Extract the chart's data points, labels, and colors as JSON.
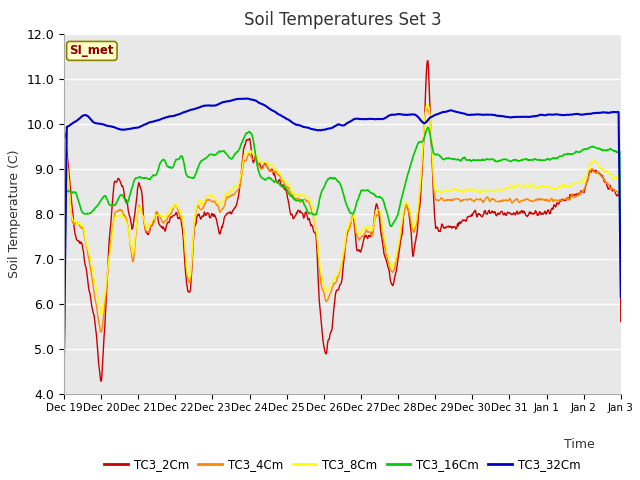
{
  "title": "Soil Temperatures Set 3",
  "xlabel": "Time",
  "ylabel": "Soil Temperature (C)",
  "ylim": [
    4.0,
    12.0
  ],
  "yticks": [
    4.0,
    5.0,
    6.0,
    7.0,
    8.0,
    9.0,
    10.0,
    11.0,
    12.0
  ],
  "plot_bg": "#e8e8e8",
  "series_colors": {
    "TC3_2Cm": "#cc0000",
    "TC3_4Cm": "#ff8800",
    "TC3_8Cm": "#ffff00",
    "TC3_16Cm": "#00cc00",
    "TC3_32Cm": "#0000cc"
  },
  "legend_label": "SI_met",
  "x_tick_labels": [
    "Dec 19",
    "Dec 20",
    "Dec 21",
    "Dec 22",
    "Dec 23",
    "Dec 24",
    "Dec 25",
    "Dec 26",
    "Dec 27",
    "Dec 28",
    "Dec 29",
    "Dec 30",
    "Dec 31",
    "Jan 1",
    "Jan 2",
    "Jan 3"
  ],
  "num_points": 1000,
  "tc3_2_waypoints": [
    [
      0.0,
      9.9
    ],
    [
      0.15,
      8.8
    ],
    [
      0.3,
      7.5
    ],
    [
      0.5,
      7.3
    ],
    [
      0.7,
      6.2
    ],
    [
      0.85,
      5.5
    ],
    [
      1.0,
      4.1
    ],
    [
      1.1,
      5.5
    ],
    [
      1.2,
      7.2
    ],
    [
      1.35,
      8.7
    ],
    [
      1.5,
      8.8
    ],
    [
      1.6,
      8.5
    ],
    [
      1.7,
      8.2
    ],
    [
      1.85,
      7.6
    ],
    [
      2.0,
      8.7
    ],
    [
      2.1,
      8.5
    ],
    [
      2.15,
      7.8
    ],
    [
      2.25,
      7.5
    ],
    [
      2.4,
      7.8
    ],
    [
      2.5,
      8.0
    ],
    [
      2.6,
      7.7
    ],
    [
      2.7,
      7.6
    ],
    [
      2.85,
      7.9
    ],
    [
      3.0,
      8.0
    ],
    [
      3.1,
      7.9
    ],
    [
      3.2,
      7.6
    ],
    [
      3.3,
      6.4
    ],
    [
      3.4,
      6.2
    ],
    [
      3.5,
      7.6
    ],
    [
      3.6,
      8.0
    ],
    [
      3.7,
      7.9
    ],
    [
      3.85,
      8.0
    ],
    [
      4.0,
      8.0
    ],
    [
      4.1,
      7.9
    ],
    [
      4.2,
      7.5
    ],
    [
      4.35,
      8.0
    ],
    [
      4.5,
      8.0
    ],
    [
      4.6,
      8.1
    ],
    [
      4.7,
      8.3
    ],
    [
      4.85,
      9.5
    ],
    [
      5.0,
      9.7
    ],
    [
      5.1,
      9.1
    ],
    [
      5.15,
      9.3
    ],
    [
      5.2,
      9.2
    ],
    [
      5.3,
      9.0
    ],
    [
      5.4,
      9.1
    ],
    [
      5.5,
      9.0
    ],
    [
      5.7,
      8.8
    ],
    [
      5.9,
      8.6
    ],
    [
      6.0,
      8.5
    ],
    [
      6.1,
      8.0
    ],
    [
      6.2,
      7.9
    ],
    [
      6.3,
      8.0
    ],
    [
      6.4,
      8.0
    ],
    [
      6.5,
      8.0
    ],
    [
      6.6,
      7.9
    ],
    [
      6.7,
      7.7
    ],
    [
      6.8,
      7.5
    ],
    [
      6.85,
      6.5
    ],
    [
      6.9,
      5.8
    ],
    [
      7.0,
      5.0
    ],
    [
      7.05,
      4.9
    ],
    [
      7.1,
      5.1
    ],
    [
      7.15,
      5.2
    ],
    [
      7.2,
      5.3
    ],
    [
      7.3,
      6.2
    ],
    [
      7.4,
      6.3
    ],
    [
      7.5,
      6.6
    ],
    [
      7.6,
      7.5
    ],
    [
      7.8,
      8.0
    ],
    [
      7.85,
      7.5
    ],
    [
      7.9,
      7.2
    ],
    [
      8.0,
      7.2
    ],
    [
      8.1,
      7.5
    ],
    [
      8.2,
      7.5
    ],
    [
      8.3,
      7.5
    ],
    [
      8.4,
      8.2
    ],
    [
      8.5,
      8.0
    ],
    [
      8.55,
      7.5
    ],
    [
      8.6,
      7.2
    ],
    [
      8.7,
      6.9
    ],
    [
      8.8,
      6.5
    ],
    [
      8.85,
      6.4
    ],
    [
      8.9,
      6.5
    ],
    [
      9.0,
      7.0
    ],
    [
      9.1,
      7.5
    ],
    [
      9.15,
      8.0
    ],
    [
      9.2,
      8.2
    ],
    [
      9.3,
      8.0
    ],
    [
      9.35,
      7.5
    ],
    [
      9.4,
      7.0
    ],
    [
      9.45,
      7.3
    ],
    [
      9.5,
      7.5
    ],
    [
      9.55,
      8.0
    ],
    [
      9.6,
      8.3
    ],
    [
      9.7,
      9.8
    ],
    [
      9.75,
      10.9
    ],
    [
      9.8,
      11.6
    ],
    [
      9.85,
      10.5
    ],
    [
      9.9,
      9.5
    ],
    [
      9.95,
      8.5
    ],
    [
      10.0,
      7.7
    ],
    [
      10.05,
      7.7
    ],
    [
      10.1,
      7.65
    ],
    [
      10.2,
      7.7
    ],
    [
      10.3,
      7.7
    ],
    [
      10.5,
      7.7
    ],
    [
      10.7,
      7.8
    ],
    [
      11.0,
      8.0
    ],
    [
      11.5,
      8.0
    ],
    [
      12.0,
      8.0
    ],
    [
      12.5,
      8.0
    ],
    [
      13.0,
      8.0
    ],
    [
      13.5,
      8.3
    ],
    [
      14.0,
      8.5
    ],
    [
      14.2,
      9.0
    ],
    [
      14.5,
      8.8
    ],
    [
      14.8,
      8.5
    ],
    [
      15.0,
      8.4
    ]
  ],
  "tc3_4_waypoints": [
    [
      0.0,
      9.9
    ],
    [
      0.2,
      7.8
    ],
    [
      0.5,
      7.7
    ],
    [
      0.7,
      6.8
    ],
    [
      0.85,
      6.0
    ],
    [
      1.0,
      5.3
    ],
    [
      1.1,
      6.0
    ],
    [
      1.2,
      7.0
    ],
    [
      1.35,
      8.0
    ],
    [
      1.5,
      8.1
    ],
    [
      1.6,
      8.0
    ],
    [
      1.7,
      7.8
    ],
    [
      1.85,
      6.8
    ],
    [
      2.0,
      8.2
    ],
    [
      2.1,
      8.0
    ],
    [
      2.2,
      7.6
    ],
    [
      2.35,
      7.7
    ],
    [
      2.5,
      8.0
    ],
    [
      2.7,
      7.8
    ],
    [
      2.85,
      8.0
    ],
    [
      3.0,
      8.2
    ],
    [
      3.1,
      8.0
    ],
    [
      3.2,
      7.8
    ],
    [
      3.3,
      6.6
    ],
    [
      3.4,
      6.4
    ],
    [
      3.5,
      7.8
    ],
    [
      3.6,
      8.2
    ],
    [
      3.7,
      8.1
    ],
    [
      3.85,
      8.3
    ],
    [
      4.0,
      8.3
    ],
    [
      4.1,
      8.2
    ],
    [
      4.2,
      8.0
    ],
    [
      4.35,
      8.3
    ],
    [
      4.5,
      8.4
    ],
    [
      4.7,
      8.5
    ],
    [
      4.85,
      9.2
    ],
    [
      5.0,
      9.3
    ],
    [
      5.1,
      9.2
    ],
    [
      5.2,
      9.2
    ],
    [
      5.3,
      9.0
    ],
    [
      5.4,
      9.1
    ],
    [
      5.5,
      9.0
    ],
    [
      5.7,
      8.9
    ],
    [
      5.9,
      8.7
    ],
    [
      6.0,
      8.6
    ],
    [
      6.2,
      8.3
    ],
    [
      6.4,
      8.3
    ],
    [
      6.5,
      8.3
    ],
    [
      6.6,
      8.2
    ],
    [
      6.7,
      8.0
    ],
    [
      6.8,
      7.5
    ],
    [
      6.85,
      7.0
    ],
    [
      6.9,
      6.5
    ],
    [
      7.0,
      6.2
    ],
    [
      7.05,
      6.0
    ],
    [
      7.1,
      6.1
    ],
    [
      7.2,
      6.3
    ],
    [
      7.3,
      6.5
    ],
    [
      7.4,
      6.6
    ],
    [
      7.5,
      6.9
    ],
    [
      7.6,
      7.5
    ],
    [
      7.8,
      8.0
    ],
    [
      7.85,
      7.6
    ],
    [
      7.9,
      7.4
    ],
    [
      8.0,
      7.5
    ],
    [
      8.1,
      7.6
    ],
    [
      8.2,
      7.6
    ],
    [
      8.3,
      7.5
    ],
    [
      8.4,
      8.0
    ],
    [
      8.5,
      8.0
    ],
    [
      8.55,
      7.8
    ],
    [
      8.6,
      7.4
    ],
    [
      8.7,
      7.0
    ],
    [
      8.8,
      6.7
    ],
    [
      8.9,
      6.8
    ],
    [
      9.0,
      7.2
    ],
    [
      9.1,
      7.8
    ],
    [
      9.15,
      8.0
    ],
    [
      9.2,
      8.2
    ],
    [
      9.3,
      8.0
    ],
    [
      9.35,
      7.8
    ],
    [
      9.4,
      7.5
    ],
    [
      9.5,
      7.8
    ],
    [
      9.55,
      8.2
    ],
    [
      9.6,
      8.6
    ],
    [
      9.7,
      10.0
    ],
    [
      9.75,
      10.3
    ],
    [
      9.8,
      10.3
    ],
    [
      9.85,
      10.2
    ],
    [
      9.9,
      9.5
    ],
    [
      9.95,
      8.5
    ],
    [
      10.0,
      8.3
    ],
    [
      10.05,
      8.3
    ],
    [
      10.2,
      8.3
    ],
    [
      10.5,
      8.3
    ],
    [
      11.0,
      8.3
    ],
    [
      11.5,
      8.3
    ],
    [
      12.0,
      8.3
    ],
    [
      13.0,
      8.3
    ],
    [
      13.5,
      8.3
    ],
    [
      14.0,
      8.5
    ],
    [
      14.2,
      9.0
    ],
    [
      14.5,
      8.8
    ],
    [
      14.8,
      8.5
    ],
    [
      15.0,
      8.4
    ]
  ],
  "tc3_8_waypoints": [
    [
      0.0,
      9.9
    ],
    [
      0.2,
      7.9
    ],
    [
      0.5,
      7.7
    ],
    [
      0.7,
      7.0
    ],
    [
      0.85,
      6.4
    ],
    [
      1.0,
      5.7
    ],
    [
      1.1,
      6.2
    ],
    [
      1.2,
      7.0
    ],
    [
      1.35,
      7.9
    ],
    [
      1.5,
      8.0
    ],
    [
      1.6,
      7.9
    ],
    [
      1.7,
      7.8
    ],
    [
      1.85,
      7.0
    ],
    [
      2.0,
      8.2
    ],
    [
      2.1,
      8.0
    ],
    [
      2.2,
      7.7
    ],
    [
      2.35,
      7.8
    ],
    [
      2.5,
      8.0
    ],
    [
      2.7,
      7.9
    ],
    [
      2.85,
      8.1
    ],
    [
      3.0,
      8.2
    ],
    [
      3.1,
      8.1
    ],
    [
      3.2,
      7.9
    ],
    [
      3.3,
      6.7
    ],
    [
      3.4,
      6.5
    ],
    [
      3.5,
      7.9
    ],
    [
      3.6,
      8.3
    ],
    [
      3.7,
      8.2
    ],
    [
      3.85,
      8.4
    ],
    [
      4.0,
      8.4
    ],
    [
      4.1,
      8.3
    ],
    [
      4.2,
      8.2
    ],
    [
      4.35,
      8.4
    ],
    [
      4.5,
      8.5
    ],
    [
      4.7,
      8.6
    ],
    [
      4.85,
      9.3
    ],
    [
      5.0,
      9.4
    ],
    [
      5.1,
      9.3
    ],
    [
      5.2,
      9.3
    ],
    [
      5.3,
      9.1
    ],
    [
      5.4,
      9.2
    ],
    [
      5.5,
      9.1
    ],
    [
      5.7,
      9.0
    ],
    [
      5.9,
      8.8
    ],
    [
      6.0,
      8.7
    ],
    [
      6.2,
      8.4
    ],
    [
      6.4,
      8.4
    ],
    [
      6.5,
      8.4
    ],
    [
      6.6,
      8.3
    ],
    [
      6.7,
      8.1
    ],
    [
      6.8,
      7.6
    ],
    [
      6.85,
      7.1
    ],
    [
      6.9,
      6.7
    ],
    [
      7.0,
      6.4
    ],
    [
      7.05,
      6.2
    ],
    [
      7.1,
      6.3
    ],
    [
      7.2,
      6.4
    ],
    [
      7.3,
      6.6
    ],
    [
      7.4,
      6.7
    ],
    [
      7.5,
      7.0
    ],
    [
      7.6,
      7.6
    ],
    [
      7.8,
      8.0
    ],
    [
      7.85,
      7.7
    ],
    [
      7.9,
      7.5
    ],
    [
      8.0,
      7.6
    ],
    [
      8.1,
      7.7
    ],
    [
      8.2,
      7.7
    ],
    [
      8.3,
      7.6
    ],
    [
      8.4,
      8.1
    ],
    [
      8.5,
      8.1
    ],
    [
      8.55,
      7.9
    ],
    [
      8.6,
      7.5
    ],
    [
      8.7,
      7.1
    ],
    [
      8.8,
      6.8
    ],
    [
      8.9,
      6.9
    ],
    [
      9.0,
      7.3
    ],
    [
      9.1,
      7.9
    ],
    [
      9.15,
      8.1
    ],
    [
      9.2,
      8.3
    ],
    [
      9.3,
      8.1
    ],
    [
      9.35,
      7.9
    ],
    [
      9.4,
      7.6
    ],
    [
      9.5,
      7.9
    ],
    [
      9.55,
      8.3
    ],
    [
      9.6,
      8.7
    ],
    [
      9.7,
      10.1
    ],
    [
      9.75,
      10.4
    ],
    [
      9.8,
      10.4
    ],
    [
      9.85,
      10.3
    ],
    [
      9.9,
      9.6
    ],
    [
      9.95,
      8.7
    ],
    [
      10.0,
      8.5
    ],
    [
      10.05,
      8.5
    ],
    [
      10.2,
      8.5
    ],
    [
      10.5,
      8.5
    ],
    [
      11.0,
      8.5
    ],
    [
      11.5,
      8.5
    ],
    [
      12.0,
      8.6
    ],
    [
      13.0,
      8.6
    ],
    [
      13.5,
      8.6
    ],
    [
      14.0,
      8.7
    ],
    [
      14.2,
      9.2
    ],
    [
      14.5,
      9.0
    ],
    [
      14.8,
      8.8
    ],
    [
      15.0,
      8.7
    ]
  ],
  "tc3_16_waypoints": [
    [
      0.0,
      8.5
    ],
    [
      0.3,
      8.5
    ],
    [
      0.5,
      8.0
    ],
    [
      0.7,
      8.0
    ],
    [
      0.9,
      8.2
    ],
    [
      1.0,
      8.3
    ],
    [
      1.1,
      8.4
    ],
    [
      1.2,
      8.2
    ],
    [
      1.4,
      8.2
    ],
    [
      1.5,
      8.4
    ],
    [
      1.6,
      8.4
    ],
    [
      1.7,
      8.2
    ],
    [
      1.9,
      8.8
    ],
    [
      2.0,
      8.8
    ],
    [
      2.1,
      8.8
    ],
    [
      2.2,
      8.8
    ],
    [
      2.3,
      8.8
    ],
    [
      2.5,
      8.9
    ],
    [
      2.6,
      9.2
    ],
    [
      2.7,
      9.2
    ],
    [
      2.8,
      9.0
    ],
    [
      2.9,
      9.0
    ],
    [
      3.0,
      9.2
    ],
    [
      3.1,
      9.2
    ],
    [
      3.15,
      9.3
    ],
    [
      3.2,
      9.2
    ],
    [
      3.3,
      8.8
    ],
    [
      3.4,
      8.8
    ],
    [
      3.5,
      8.8
    ],
    [
      3.6,
      9.0
    ],
    [
      3.7,
      9.2
    ],
    [
      3.8,
      9.2
    ],
    [
      3.9,
      9.3
    ],
    [
      4.0,
      9.3
    ],
    [
      4.1,
      9.3
    ],
    [
      4.2,
      9.4
    ],
    [
      4.3,
      9.4
    ],
    [
      4.4,
      9.3
    ],
    [
      4.5,
      9.2
    ],
    [
      4.6,
      9.3
    ],
    [
      4.7,
      9.4
    ],
    [
      4.8,
      9.6
    ],
    [
      4.9,
      9.8
    ],
    [
      5.0,
      9.8
    ],
    [
      5.05,
      9.8
    ],
    [
      5.1,
      9.6
    ],
    [
      5.2,
      9.0
    ],
    [
      5.3,
      8.8
    ],
    [
      5.4,
      8.8
    ],
    [
      5.5,
      8.8
    ],
    [
      5.7,
      8.7
    ],
    [
      5.9,
      8.6
    ],
    [
      6.0,
      8.5
    ],
    [
      6.2,
      8.3
    ],
    [
      6.4,
      8.3
    ],
    [
      6.5,
      8.1
    ],
    [
      6.6,
      8.0
    ],
    [
      6.7,
      8.0
    ],
    [
      6.8,
      8.0
    ],
    [
      6.9,
      8.4
    ],
    [
      7.0,
      8.6
    ],
    [
      7.05,
      8.7
    ],
    [
      7.1,
      8.8
    ],
    [
      7.2,
      8.8
    ],
    [
      7.3,
      8.8
    ],
    [
      7.4,
      8.7
    ],
    [
      7.5,
      8.5
    ],
    [
      7.6,
      8.2
    ],
    [
      7.7,
      8.0
    ],
    [
      7.8,
      8.0
    ],
    [
      7.85,
      8.2
    ],
    [
      7.9,
      8.3
    ],
    [
      8.0,
      8.5
    ],
    [
      8.2,
      8.5
    ],
    [
      8.4,
      8.4
    ],
    [
      8.6,
      8.3
    ],
    [
      8.7,
      8.0
    ],
    [
      8.75,
      7.8
    ],
    [
      8.8,
      7.7
    ],
    [
      8.9,
      7.8
    ],
    [
      9.0,
      8.0
    ],
    [
      9.1,
      8.4
    ],
    [
      9.2,
      8.7
    ],
    [
      9.3,
      9.0
    ],
    [
      9.4,
      9.3
    ],
    [
      9.5,
      9.5
    ],
    [
      9.55,
      9.6
    ],
    [
      9.6,
      9.6
    ],
    [
      9.65,
      9.6
    ],
    [
      9.7,
      9.7
    ],
    [
      9.75,
      9.8
    ],
    [
      9.8,
      10.0
    ],
    [
      9.85,
      9.8
    ],
    [
      9.9,
      9.5
    ],
    [
      9.95,
      9.3
    ],
    [
      10.0,
      9.3
    ],
    [
      10.1,
      9.3
    ],
    [
      10.2,
      9.2
    ],
    [
      10.5,
      9.2
    ],
    [
      11.0,
      9.2
    ],
    [
      11.5,
      9.2
    ],
    [
      12.0,
      9.2
    ],
    [
      13.0,
      9.2
    ],
    [
      13.5,
      9.3
    ],
    [
      14.0,
      9.4
    ],
    [
      14.2,
      9.5
    ],
    [
      14.5,
      9.4
    ],
    [
      14.8,
      9.4
    ],
    [
      15.0,
      9.4
    ]
  ],
  "tc3_32_waypoints": [
    [
      0.0,
      9.9
    ],
    [
      0.2,
      10.0
    ],
    [
      0.4,
      10.1
    ],
    [
      0.5,
      10.2
    ],
    [
      0.6,
      10.2
    ],
    [
      0.7,
      10.1
    ],
    [
      0.8,
      10.0
    ],
    [
      1.0,
      10.0
    ],
    [
      1.2,
      9.95
    ],
    [
      1.4,
      9.9
    ],
    [
      1.6,
      9.85
    ],
    [
      1.8,
      9.9
    ],
    [
      2.0,
      9.9
    ],
    [
      2.2,
      10.0
    ],
    [
      2.4,
      10.05
    ],
    [
      2.6,
      10.1
    ],
    [
      2.8,
      10.15
    ],
    [
      3.0,
      10.2
    ],
    [
      3.2,
      10.25
    ],
    [
      3.4,
      10.3
    ],
    [
      3.6,
      10.35
    ],
    [
      3.8,
      10.4
    ],
    [
      4.0,
      10.4
    ],
    [
      4.2,
      10.45
    ],
    [
      4.4,
      10.5
    ],
    [
      4.6,
      10.55
    ],
    [
      4.8,
      10.55
    ],
    [
      5.0,
      10.55
    ],
    [
      5.2,
      10.5
    ],
    [
      5.4,
      10.4
    ],
    [
      5.6,
      10.3
    ],
    [
      5.8,
      10.2
    ],
    [
      6.0,
      10.1
    ],
    [
      6.2,
      10.0
    ],
    [
      6.4,
      9.95
    ],
    [
      6.6,
      9.9
    ],
    [
      6.8,
      9.85
    ],
    [
      7.0,
      9.85
    ],
    [
      7.2,
      9.9
    ],
    [
      7.4,
      10.0
    ],
    [
      7.5,
      9.95
    ],
    [
      7.6,
      10.0
    ],
    [
      7.8,
      10.1
    ],
    [
      8.0,
      10.1
    ],
    [
      8.2,
      10.1
    ],
    [
      8.4,
      10.1
    ],
    [
      8.6,
      10.1
    ],
    [
      8.8,
      10.2
    ],
    [
      9.0,
      10.2
    ],
    [
      9.2,
      10.2
    ],
    [
      9.4,
      10.2
    ],
    [
      9.5,
      10.2
    ],
    [
      9.6,
      10.1
    ],
    [
      9.65,
      10.0
    ],
    [
      9.7,
      10.0
    ],
    [
      9.75,
      10.0
    ],
    [
      9.8,
      10.1
    ],
    [
      9.9,
      10.15
    ],
    [
      10.0,
      10.2
    ],
    [
      10.2,
      10.25
    ],
    [
      10.4,
      10.3
    ],
    [
      10.6,
      10.25
    ],
    [
      10.8,
      10.2
    ],
    [
      11.0,
      10.2
    ],
    [
      11.5,
      10.2
    ],
    [
      12.0,
      10.15
    ],
    [
      12.5,
      10.15
    ],
    [
      13.0,
      10.2
    ],
    [
      13.5,
      10.2
    ],
    [
      14.0,
      10.2
    ],
    [
      14.5,
      10.25
    ],
    [
      15.0,
      10.25
    ]
  ]
}
